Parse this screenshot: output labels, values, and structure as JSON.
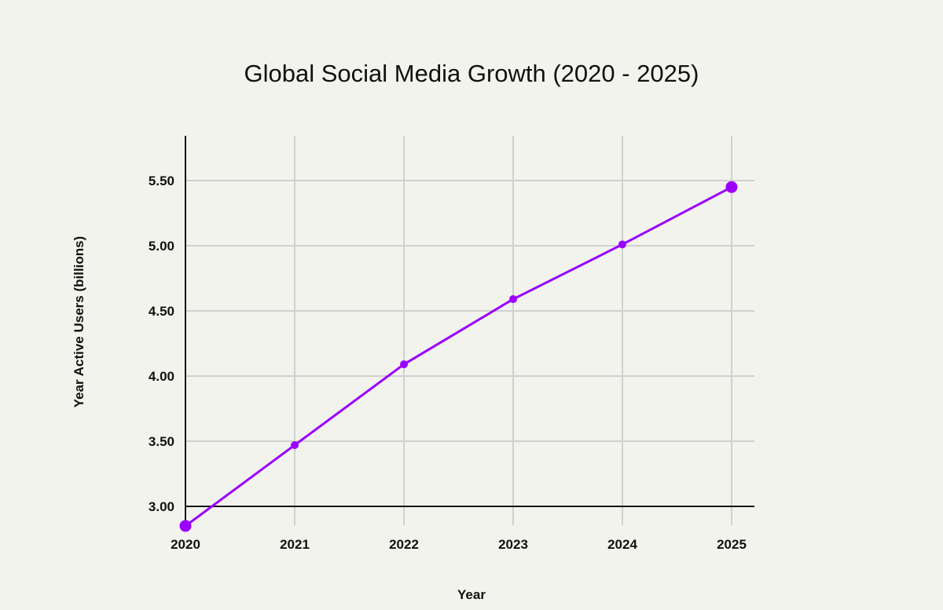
{
  "chart_data": {
    "type": "line",
    "title": "Global Social Media Growth (2020 - 2025)",
    "xlabel": "Year",
    "ylabel": "Year Active Users (billions)",
    "x": [
      2020,
      2021,
      2022,
      2023,
      2024,
      2025
    ],
    "x_tick_labels": [
      "2020",
      "2021",
      "2022",
      "2023",
      "2024",
      "2025"
    ],
    "y_tick_labels": [
      "3.00",
      "3.50",
      "4.00",
      "4.50",
      "5.00",
      "5.50"
    ],
    "y_ticks": [
      3.0,
      3.5,
      4.0,
      4.5,
      5.0,
      5.5
    ],
    "ylim": [
      3.0,
      5.84
    ],
    "xlim": [
      2020,
      2025.2
    ],
    "grid": true,
    "series": [
      {
        "values": [
          2.85,
          3.47,
          4.09,
          4.59,
          5.01,
          5.45
        ],
        "color": "#9b00ff"
      }
    ],
    "colors": {
      "background": "#f3f3ee",
      "grid": "#d0d0d0",
      "axis": "#111111"
    }
  }
}
